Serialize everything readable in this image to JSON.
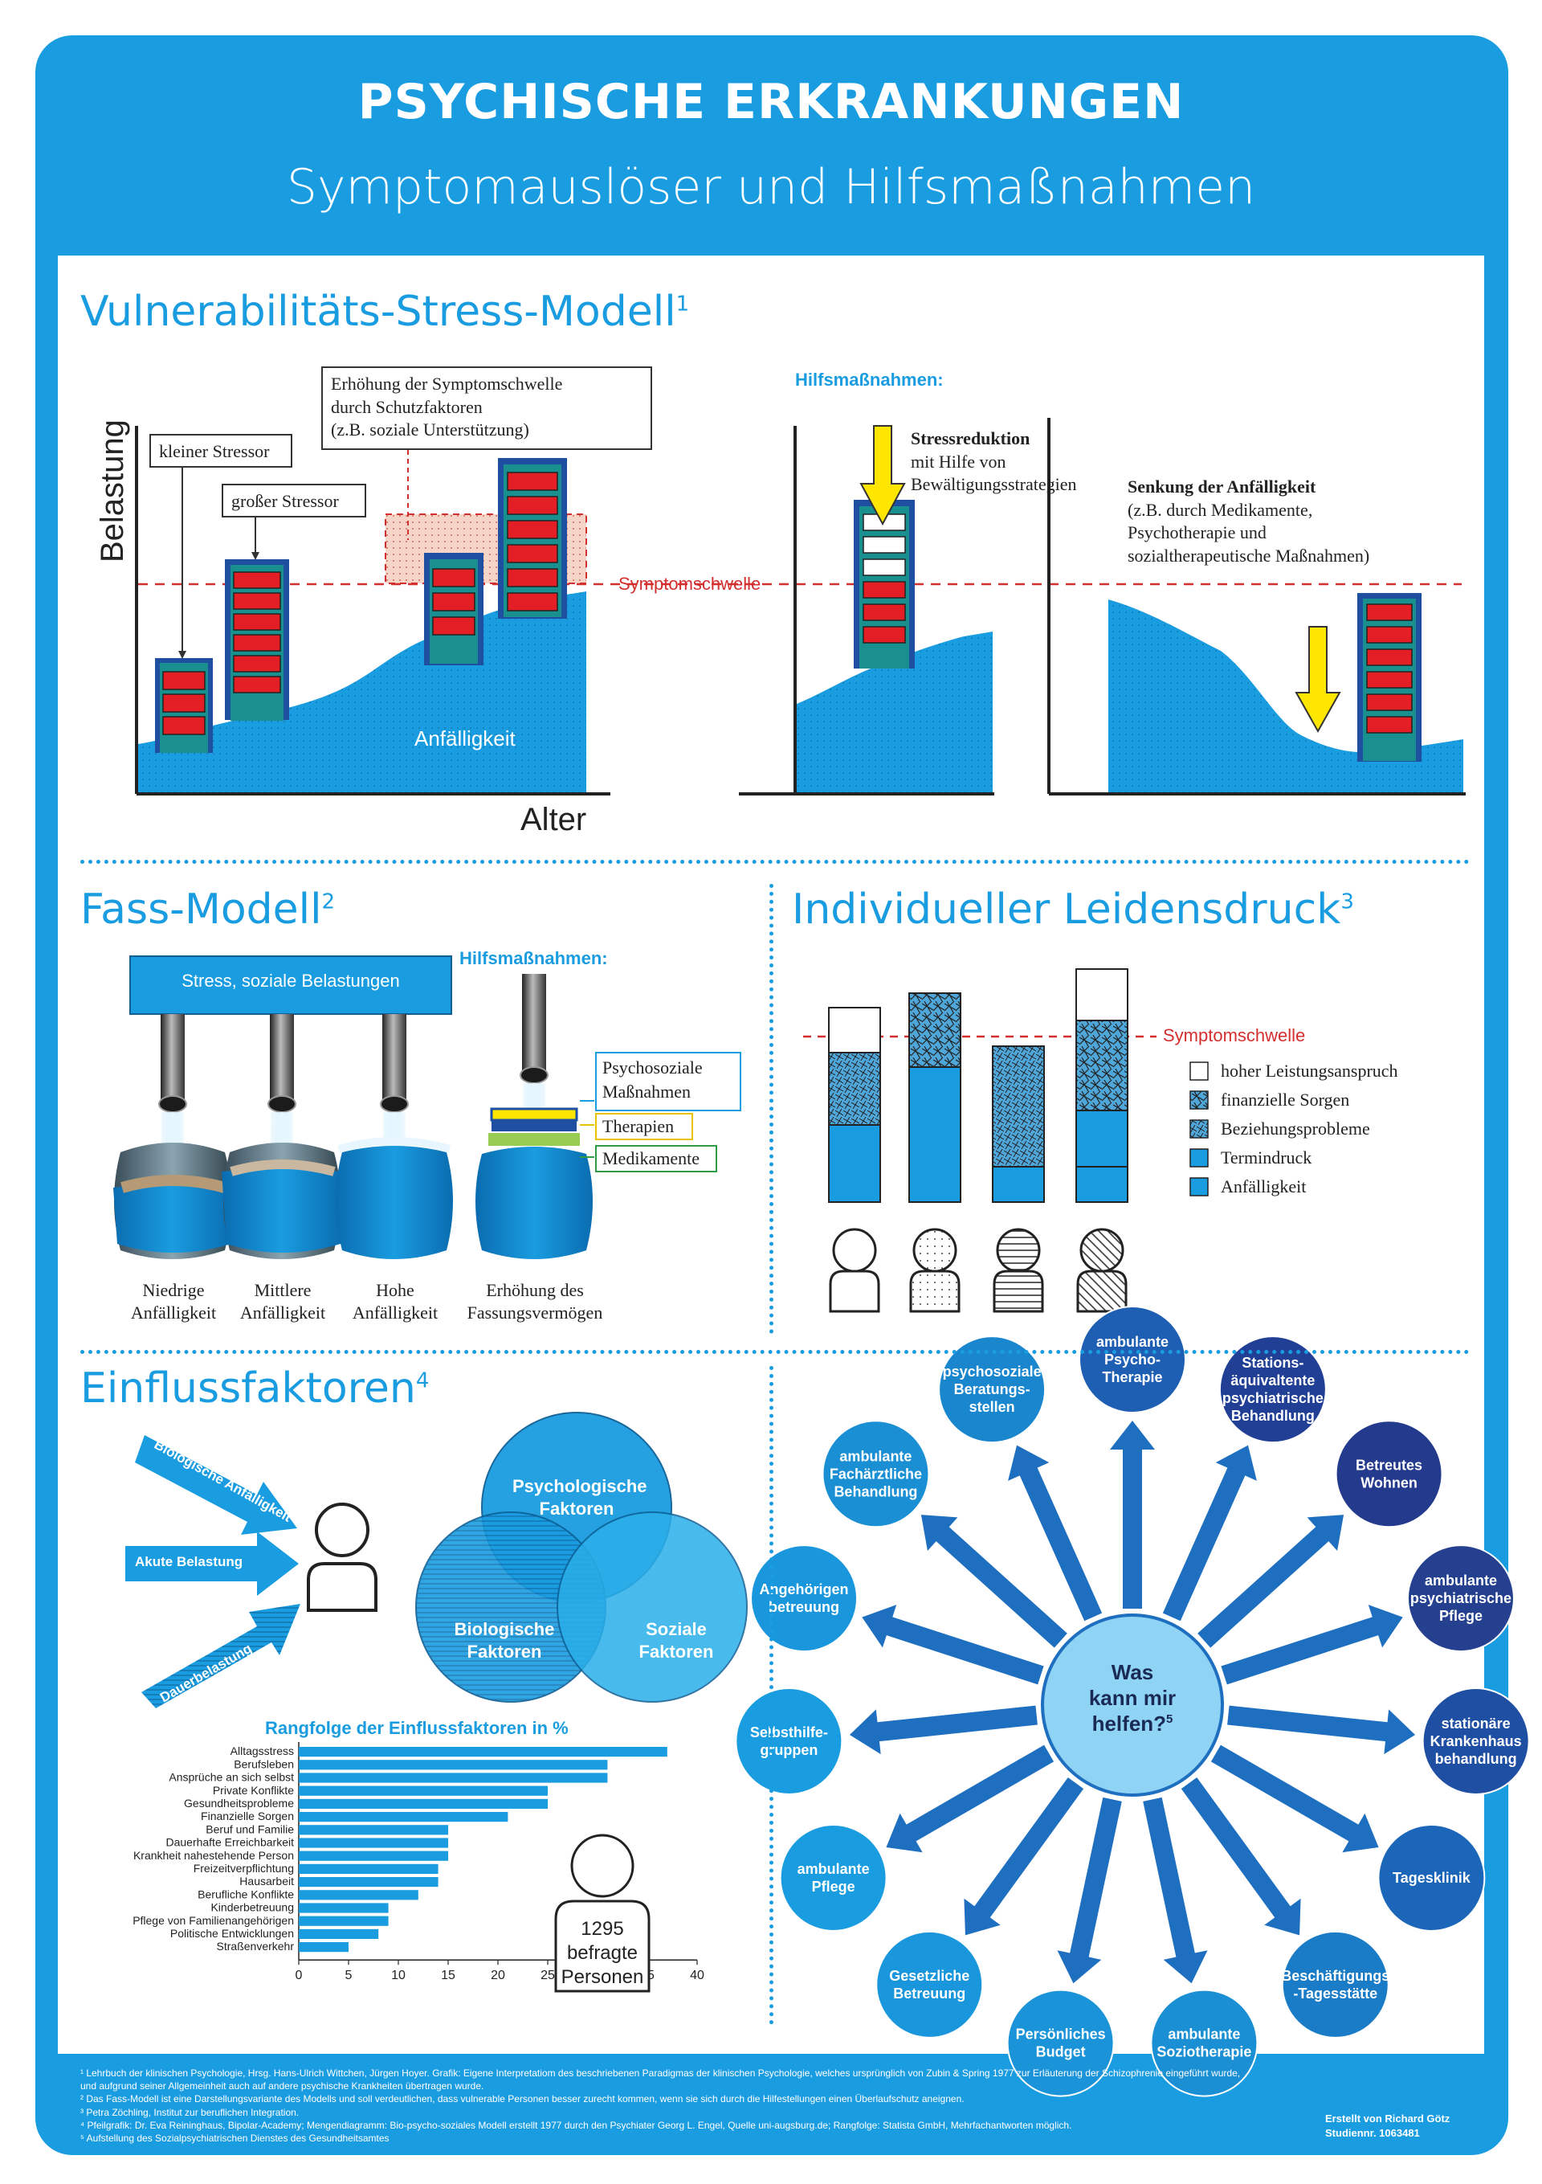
{
  "header": {
    "title": "PSYCHISCHE ERKRANKUNGEN",
    "subtitle": "Symptomauslöser und Hilfsmaßnahmen"
  },
  "vsm": {
    "title": "Vulnerabilitäts-Stress-Modell",
    "sup": "1",
    "y_label": "Belastung",
    "x_label": "Alter",
    "box_small": "kleiner Stressor",
    "box_big": "großer Stressor",
    "box_threshold_1": "Erhöhung der Symptomschwelle",
    "box_threshold_2": "durch Schutzfaktoren",
    "box_threshold_3": "(z.B. soziale Unterstützung)",
    "vulnerability": "Anfälligkeit",
    "threshold": "Symptomschwelle",
    "help_title": "Hilfsmaßnahmen:",
    "stress_red_bold": "Stressreduktion",
    "stress_red_2": "mit Hilfe von",
    "stress_red_3": "Bewältigungsstrategien",
    "lower_bold": "Senkung der Anfälligkeit",
    "lower_2": "(z.B. durch Medikamente,",
    "lower_3": "Psychotherapie und",
    "lower_4": "sozialtherapeutische Maßnahmen)"
  },
  "fass": {
    "title": "Fass-Modell",
    "sup": "2",
    "stress_bar": "Stress, soziale Belastungen",
    "help_title": "Hilfsmaßnahmen:",
    "leg_psycho_1": "Psychosoziale",
    "leg_psycho_2": "Maßnahmen",
    "leg_therapy": "Therapien",
    "leg_meds": "Medikamente",
    "b1_1": "Niedrige",
    "b1_2": "Anfälligkeit",
    "b2_1": "Mittlere",
    "b2_2": "Anfälligkeit",
    "b3_1": "Hohe",
    "b3_2": "Anfälligkeit",
    "b4_1": "Erhöhung des",
    "b4_2": "Fassungsvermögen"
  },
  "leidensdruck": {
    "title": "Individueller Leidensdruck",
    "sup": "3",
    "threshold": "Symptomschwelle",
    "legend": [
      "hoher Leistungsanspruch",
      "finanzielle Sorgen",
      "Beziehungsprobleme",
      "Termindruck",
      "Anfälligkeit"
    ]
  },
  "einfluss": {
    "title": "Einflussfaktoren",
    "sup": "4",
    "arrow1": "Biologische Anfälligkeit",
    "arrow2": "Akute Belastung",
    "arrow3": "Dauerbelastung",
    "venn_psych_1": "Psychologische",
    "venn_psych_2": "Faktoren",
    "venn_bio_1": "Biologische",
    "venn_bio_2": "Faktoren",
    "venn_soz_1": "Soziale",
    "venn_soz_2": "Faktoren",
    "people_1": "1295",
    "people_2": "befragte",
    "people_3": "Personen"
  },
  "chart_data": {
    "type": "bar",
    "orientation": "horizontal",
    "title": "Rangfolge der Einflussfaktoren in %",
    "categories": [
      "Alltagsstress",
      "Berufsleben",
      "Ansprüche an sich selbst",
      "Private Konflikte",
      "Gesundheitsprobleme",
      "Finanzielle Sorgen",
      "Beruf und Familie",
      "Dauerhafte Erreichbarkeit",
      "Krankheit nahestehende Person",
      "Freizeitverpflichtung",
      "Hausarbeit",
      "Berufliche Konflikte",
      "Kinderbetreuung",
      "Pflege von Familienangehörigen",
      "Politische Entwicklungen",
      "Straßenverkehr"
    ],
    "values": [
      37,
      31,
      31,
      25,
      25,
      21,
      15,
      15,
      15,
      14,
      14,
      12,
      9,
      9,
      8,
      5
    ],
    "xlim": [
      0,
      40
    ],
    "xticks": [
      "0",
      "5",
      "10",
      "15",
      "20",
      "25",
      "30",
      "35",
      "40"
    ],
    "color": "#1a9ce0"
  },
  "help_wheel": {
    "center_1": "Was",
    "center_2": "kann mir",
    "center_3": "helfen?",
    "center_sup": "5",
    "items": [
      {
        "lines": [
          "ambulante",
          "Psycho-",
          "Therapie"
        ],
        "color": "#1f5fb3"
      },
      {
        "lines": [
          "Stations-",
          "äquivaltente",
          "psychiatrische",
          "Behandlung"
        ],
        "color": "#203f95"
      },
      {
        "lines": [
          "Betreutes",
          "Wohnen"
        ],
        "color": "#243a8c"
      },
      {
        "lines": [
          "ambulante",
          "psychiatrische",
          "Pflege"
        ],
        "color": "#24408f"
      },
      {
        "lines": [
          "stationäre",
          "Krankenhaus",
          "behandlung"
        ],
        "color": "#1f4fa2"
      },
      {
        "lines": [
          "Tagesklinik"
        ],
        "color": "#1b66b8"
      },
      {
        "lines": [
          "Beschäftigungs",
          "-Tagesstätte"
        ],
        "color": "#1a7cc6"
      },
      {
        "lines": [
          "ambulante",
          "Soziotherapie"
        ],
        "color": "#1a8fd4"
      },
      {
        "lines": [
          "Persönliches",
          "Budget"
        ],
        "color": "#1a93d8"
      },
      {
        "lines": [
          "Gesetzliche",
          "Betreuung"
        ],
        "color": "#1a97dc"
      },
      {
        "lines": [
          "ambulante",
          "Pflege"
        ],
        "color": "#1a9ce0"
      },
      {
        "lines": [
          "Selbsthilfe-",
          "gruppen"
        ],
        "color": "#1a9ce0"
      },
      {
        "lines": [
          "Angehörigen",
          "betreuung"
        ],
        "color": "#1a97dc"
      },
      {
        "lines": [
          "ambulante",
          "Fachärztliche",
          "Behandlung"
        ],
        "color": "#1a8fd4"
      },
      {
        "lines": [
          "psychosoziale",
          "Beratungs-",
          "stellen"
        ],
        "color": "#1a86cd"
      }
    ]
  },
  "footer": {
    "l1": "¹ Lehrbuch der klinischen Psychologie, Hrsg. Hans-Ulrich Wittchen, Jürgen Hoyer. Grafik: Eigene Interpretatiom des beschriebenen Paradigmas der klinischen Psychologie, welches ursprünglich von Zubin & Spring 1977 zur Erläuterung der Schizophrenie eingeführt wurde,",
    "l2": "und aufgrund seiner Allgemeinheit auch auf andere psychische Krankheiten übertragen wurde.",
    "l3": "² Das Fass-Modell ist eine Darstellungsvariante des Modells und soll verdeutlichen, dass vulnerable Personen besser zurecht kommen, wenn sie sich durch die Hilfestellungen einen Überlaufschutz aneignen.",
    "l4": "³ Petra Zöchling, Institut zur beruflichen Integration.",
    "l5": "⁴ Pfeilgrafik: Dr. Eva Reininghaus, Bipolar-Academy; Mengendiagramm: Bio-psycho-soziales Modell erstellt 1977 durch den Psychiater Georg L. Engel, Quelle uni-augsburg.de; Rangfolge: Statista GmbH, Mehrfachantworten möglich.",
    "l6": "⁵ Aufstellung des Sozialpsychiatrischen Dienstes des Gesundheitsamtes",
    "credit_1": "Erstellt von Richard Götz",
    "credit_2": "Studiennr. 1063481"
  }
}
